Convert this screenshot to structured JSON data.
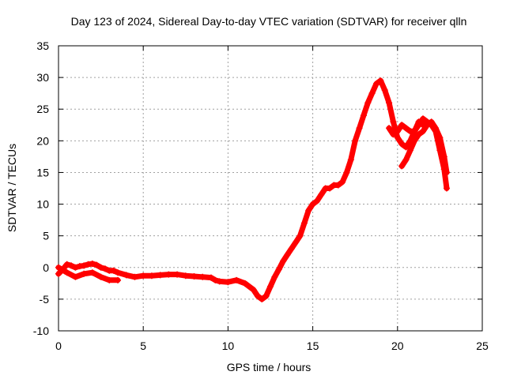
{
  "chart_data": {
    "type": "scatter",
    "title": "Day 123 of 2024, Sidereal Day-to-day VTEC variation (SDTVAR) for receiver qlln",
    "xlabel": "GPS time / hours",
    "ylabel": "SDTVAR / TECUs",
    "xlim": [
      0,
      25
    ],
    "ylim": [
      -10,
      35
    ],
    "xticks": [
      "0",
      "5",
      "10",
      "15",
      "20",
      "25"
    ],
    "yticks": [
      "-10",
      "-5",
      "0",
      "5",
      "10",
      "15",
      "20",
      "25",
      "30",
      "35"
    ],
    "grid": true,
    "marker": "+",
    "series": [
      {
        "name": "SDTVAR",
        "color": "#ff0000",
        "segments": [
          {
            "x": [
              0.0,
              0.25,
              0.5,
              0.75,
              1.0,
              1.25,
              1.5,
              1.75,
              2.0,
              2.25,
              2.5,
              2.75,
              3.0,
              3.25,
              3.5,
              4.0,
              4.5,
              5.0,
              5.5,
              6.0,
              6.5,
              7.0,
              7.5,
              8.0,
              8.5,
              9.0,
              9.25,
              9.5,
              10.0,
              10.5,
              11.0,
              11.5,
              11.75,
              12.0,
              12.25,
              12.5,
              12.75,
              13.0,
              13.25,
              13.5,
              13.75,
              14.0,
              14.25,
              14.5,
              14.75,
              15.0,
              15.25,
              15.5,
              15.75,
              16.0,
              16.25,
              16.5,
              16.75,
              17.0,
              17.25,
              17.5,
              17.75,
              18.0,
              18.25,
              18.5,
              18.75,
              19.0,
              19.25,
              19.5,
              19.75,
              20.0,
              20.25,
              20.5,
              20.75,
              21.0,
              21.25,
              21.5
            ],
            "y": [
              -1.0,
              -0.3,
              0.5,
              0.3,
              0.0,
              0.2,
              0.3,
              0.5,
              0.6,
              0.4,
              0.0,
              -0.2,
              -0.5,
              -0.5,
              -0.8,
              -1.2,
              -1.5,
              -1.3,
              -1.3,
              -1.2,
              -1.1,
              -1.1,
              -1.3,
              -1.4,
              -1.5,
              -1.6,
              -2.0,
              -2.2,
              -2.3,
              -2.0,
              -2.5,
              -3.5,
              -4.5,
              -5.0,
              -4.5,
              -3.0,
              -1.5,
              -0.3,
              1.0,
              2.0,
              3.0,
              4.0,
              5.0,
              7.0,
              9.0,
              10.0,
              10.5,
              11.5,
              12.5,
              12.5,
              13.0,
              13.0,
              13.5,
              15.0,
              17.0,
              20.0,
              22.0,
              24.0,
              26.0,
              27.5,
              29.0,
              29.5,
              28.0,
              26.0,
              23.0,
              20.5,
              19.5,
              19.0,
              20.0,
              21.5,
              23.0,
              22.5
            ]
          },
          {
            "x": [
              0.0,
              0.5,
              1.0,
              1.5,
              2.0,
              2.5,
              3.0,
              3.5
            ],
            "y": [
              0.0,
              -0.8,
              -1.5,
              -1.0,
              -0.8,
              -1.5,
              -2.0,
              -2.0
            ]
          },
          {
            "x": [
              19.5,
              19.75,
              20.0,
              20.25,
              20.5,
              20.75,
              21.0,
              21.25,
              21.5,
              21.75,
              22.0,
              22.25,
              22.5,
              22.75,
              22.9
            ],
            "y": [
              22.0,
              21.0,
              21.5,
              22.5,
              22.0,
              21.5,
              21.5,
              22.5,
              23.5,
              23.0,
              22.5,
              21.5,
              18.5,
              15.5,
              12.5
            ]
          },
          {
            "x": [
              20.25,
              20.5,
              20.75,
              21.0,
              21.25,
              21.5,
              21.75,
              22.0,
              22.25,
              22.5,
              22.75,
              22.9
            ],
            "y": [
              16.0,
              17.0,
              18.5,
              20.0,
              21.0,
              21.5,
              22.5,
              23.0,
              22.0,
              20.5,
              17.5,
              15.0
            ]
          }
        ]
      }
    ]
  }
}
